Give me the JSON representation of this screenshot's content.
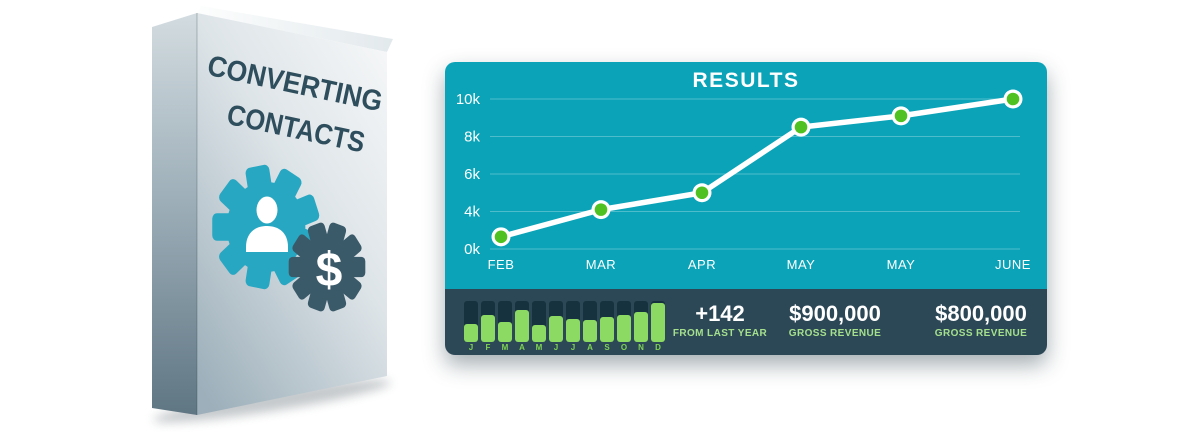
{
  "box": {
    "title_line1": "CONVERTING",
    "title_line2": "CONTACTS",
    "dollar": "$",
    "colors": {
      "title_text": "#2f4e5d",
      "gear_teal": "#28a7c2",
      "gear_dark": "#3b5a69"
    }
  },
  "results_panel": {
    "title": "RESULTS",
    "stats": [
      {
        "value": "+142",
        "label": "FROM LAST YEAR"
      },
      {
        "value": "$900,000",
        "label": "GROSS REVENUE"
      },
      {
        "value": "$800,000",
        "label": "GROSS REVENUE"
      }
    ],
    "colors": {
      "panel_teal": "#0aa3b8",
      "stats_bar_dark": "#2c4857",
      "line": "#ffffff",
      "marker_green": "#4fc222",
      "gridline": "rgba(255,255,255,0.28)",
      "mini_bar_green": "#8cd964",
      "mini_bar_track": "#16323f",
      "stat_label_green": "#a5e08c",
      "month_letter_green": "#7fd453"
    }
  },
  "chart_data": [
    {
      "type": "line",
      "title": "RESULTS",
      "x_labels": [
        "FEB",
        "MAR",
        "APR",
        "MAY",
        "MAY",
        "JUNE"
      ],
      "values_thousands": [
        1.3,
        4.1,
        5,
        8.5,
        9.1,
        10
      ],
      "y_tick_labels": [
        "10k",
        "8k",
        "6k",
        "4k",
        "0k"
      ],
      "y_tick_values": [
        10,
        8,
        6,
        4,
        0
      ],
      "ylim": [
        0,
        10
      ],
      "grid": true,
      "legend_position": "none"
    },
    {
      "type": "bar",
      "categories": [
        "J",
        "F",
        "M",
        "A",
        "M",
        "J",
        "J",
        "A",
        "S",
        "O",
        "N",
        "D"
      ],
      "values_pct_of_max": [
        45,
        65,
        50,
        77,
        42,
        63,
        57,
        53,
        61,
        67,
        73,
        95
      ],
      "ylim": [
        0,
        100
      ]
    }
  ]
}
